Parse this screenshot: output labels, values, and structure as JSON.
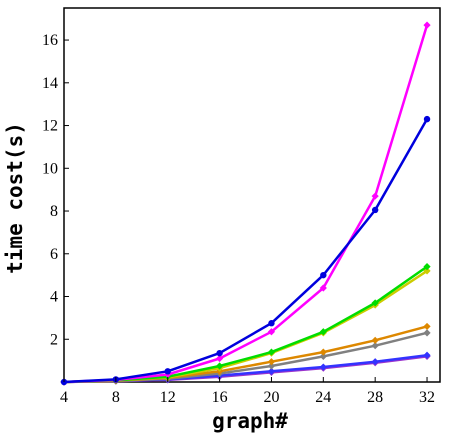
{
  "chart_data": {
    "type": "line",
    "xlabel": "graph#",
    "ylabel": "time cost(s)",
    "title": "",
    "x": [
      4,
      8,
      12,
      16,
      20,
      24,
      28,
      32
    ],
    "xlim": [
      4,
      33
    ],
    "ylim": [
      0,
      17.5
    ],
    "xticks": [
      4,
      8,
      12,
      16,
      20,
      24,
      28,
      32
    ],
    "yticks": [
      2,
      4,
      6,
      8,
      10,
      12,
      14,
      16
    ],
    "grid": false,
    "legend": "none",
    "series": [
      {
        "color": "#0000dd",
        "marker": "circle",
        "values": [
          0.0,
          0.12,
          0.5,
          1.35,
          2.75,
          5.0,
          8.05,
          12.3
        ]
      },
      {
        "color": "#ff00ff",
        "marker": "diamond",
        "values": [
          0.0,
          0.1,
          0.35,
          1.1,
          2.35,
          4.4,
          8.7,
          16.7
        ]
      },
      {
        "color": "#00dd00",
        "marker": "diamond",
        "values": [
          0.0,
          0.08,
          0.25,
          0.75,
          1.4,
          2.35,
          3.7,
          5.4
        ]
      },
      {
        "color": "#cccc00",
        "marker": "diamond",
        "values": [
          0.0,
          0.08,
          0.22,
          0.65,
          1.35,
          2.3,
          3.6,
          5.2
        ]
      },
      {
        "color": "#dd8800",
        "marker": "diamond",
        "values": [
          0.0,
          0.06,
          0.2,
          0.5,
          0.95,
          1.4,
          1.95,
          2.6
        ]
      },
      {
        "color": "#808080",
        "marker": "diamond",
        "values": [
          0.0,
          0.05,
          0.15,
          0.4,
          0.75,
          1.2,
          1.7,
          2.3
        ]
      },
      {
        "color": "#3333ff",
        "marker": "diamond",
        "values": [
          0.0,
          0.05,
          0.12,
          0.3,
          0.5,
          0.7,
          0.95,
          1.25
        ]
      },
      {
        "color": "#9933cc",
        "marker": "diamond",
        "values": [
          0.0,
          0.04,
          0.1,
          0.25,
          0.45,
          0.65,
          0.9,
          1.2
        ]
      }
    ]
  }
}
